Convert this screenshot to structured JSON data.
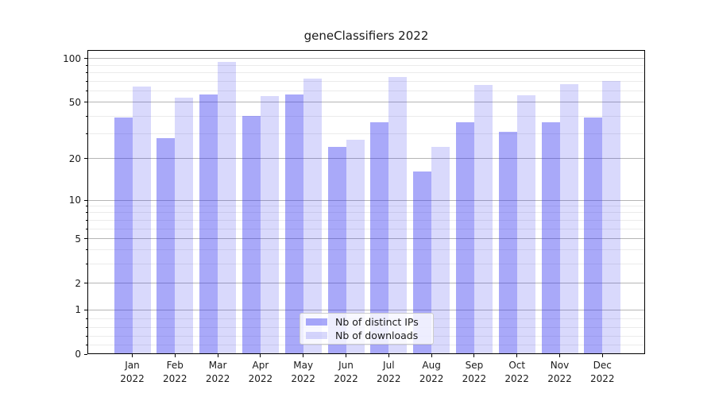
{
  "chart_data": {
    "type": "bar",
    "title": "geneClassifiers 2022",
    "categories": [
      "Jan 2022",
      "Feb 2022",
      "Mar 2022",
      "Apr 2022",
      "May 2022",
      "Jun 2022",
      "Jul 2022",
      "Aug 2022",
      "Sep 2022",
      "Oct 2022",
      "Nov 2022",
      "Dec 2022"
    ],
    "series": [
      {
        "name": "Nb of distinct IPs",
        "color": "rgba(51,51,240,0.42)",
        "values": [
          39,
          28,
          57,
          40,
          57,
          24,
          36,
          16,
          36,
          31,
          36,
          39
        ]
      },
      {
        "name": "Nb of downloads",
        "color": "rgba(51,51,240,0.185)",
        "values": [
          64,
          54,
          95,
          55,
          73,
          27,
          75,
          24,
          66,
          56,
          67,
          70
        ]
      }
    ],
    "xlabel": "",
    "ylabel": "",
    "yscale": "symlog",
    "ylim": [
      0,
      115
    ],
    "yticks": [
      {
        "value": 0,
        "frac": 0.0
      },
      {
        "value": 1,
        "frac": 0.1462
      },
      {
        "value": 2,
        "frac": 0.2324
      },
      {
        "value": 5,
        "frac": 0.3786
      },
      {
        "value": 10,
        "frac": 0.5065
      },
      {
        "value": 20,
        "frac": 0.6436
      },
      {
        "value": 50,
        "frac": 0.8277
      },
      {
        "value": 100,
        "frac": 0.9713
      }
    ],
    "minor_yticks": [
      0.2,
      0.4,
      0.6,
      0.8,
      3,
      4,
      6,
      7,
      8,
      9,
      30,
      40,
      60,
      70,
      80,
      90
    ],
    "grid": true,
    "legend_position": "lower center"
  },
  "colors": {
    "bar_distinct_ips": "rgba(51,51,240,0.42)",
    "bar_downloads": "rgba(51,51,240,0.185)",
    "grid_major": "#b5b5b5",
    "grid_minor": "#ebebeb",
    "axis": "#000000",
    "text": "#1a1a1a",
    "legend_background": "rgba(255,255,255,0.8)",
    "legend_border": "#cccccc"
  }
}
